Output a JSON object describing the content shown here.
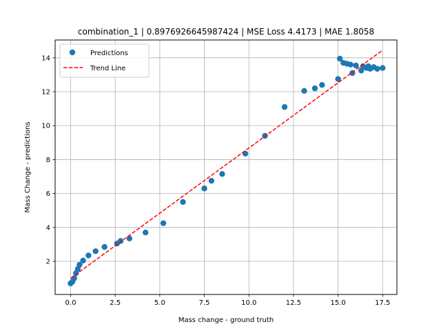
{
  "chart_data": {
    "type": "scatter",
    "title": "combination_1 | 0.8976926645987424 | MSE Loss 4.4173 | MAE 1.8058",
    "xlabel": "Mass change - ground truth",
    "ylabel": "Mass Change - predictions",
    "xlim": [
      -0.87,
      18.3
    ],
    "ylim": [
      0.05,
      15.05
    ],
    "xticks": [
      0.0,
      2.5,
      5.0,
      7.5,
      10.0,
      12.5,
      15.0,
      17.5
    ],
    "xtick_labels": [
      "0.0",
      "2.5",
      "5.0",
      "7.5",
      "10.0",
      "12.5",
      "15.0",
      "17.5"
    ],
    "yticks": [
      2,
      4,
      6,
      8,
      10,
      12,
      14
    ],
    "ytick_labels": [
      "2",
      "4",
      "6",
      "8",
      "10",
      "12",
      "14"
    ],
    "grid": true,
    "legend_position": "top-left",
    "series": [
      {
        "name": "Predictions",
        "kind": "scatter",
        "color": "#1f77b4",
        "points": [
          [
            0.0,
            0.7
          ],
          [
            0.1,
            0.8
          ],
          [
            0.2,
            1.0
          ],
          [
            0.3,
            1.3
          ],
          [
            0.4,
            1.55
          ],
          [
            0.5,
            1.8
          ],
          [
            0.7,
            2.05
          ],
          [
            1.0,
            2.35
          ],
          [
            1.4,
            2.6
          ],
          [
            1.9,
            2.85
          ],
          [
            2.6,
            3.05
          ],
          [
            2.8,
            3.2
          ],
          [
            3.3,
            3.35
          ],
          [
            4.2,
            3.7
          ],
          [
            5.2,
            4.25
          ],
          [
            6.3,
            5.5
          ],
          [
            7.5,
            6.3
          ],
          [
            7.9,
            6.75
          ],
          [
            8.5,
            7.15
          ],
          [
            9.8,
            8.35
          ],
          [
            10.9,
            9.4
          ],
          [
            12.0,
            11.1
          ],
          [
            13.1,
            12.05
          ],
          [
            13.7,
            12.2
          ],
          [
            14.1,
            12.4
          ],
          [
            15.0,
            12.75
          ],
          [
            15.1,
            13.95
          ],
          [
            15.3,
            13.7
          ],
          [
            15.5,
            13.65
          ],
          [
            15.7,
            13.6
          ],
          [
            15.8,
            13.1
          ],
          [
            16.0,
            13.55
          ],
          [
            16.3,
            13.25
          ],
          [
            16.4,
            13.5
          ],
          [
            16.6,
            13.4
          ],
          [
            16.7,
            13.5
          ],
          [
            16.8,
            13.35
          ],
          [
            17.0,
            13.45
          ],
          [
            17.2,
            13.35
          ],
          [
            17.5,
            13.4
          ]
        ]
      },
      {
        "name": "Trend Line",
        "kind": "line",
        "color": "#ff0000",
        "dash": "dashed",
        "points": [
          [
            0.0,
            1.0
          ],
          [
            17.5,
            14.45
          ]
        ]
      }
    ]
  }
}
